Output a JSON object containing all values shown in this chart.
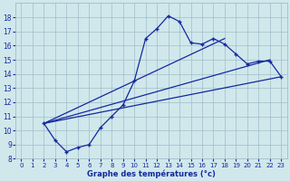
{
  "bg_color": "#d0e8ec",
  "line_color": "#1428a0",
  "grid_color": "#a0bcc8",
  "xlabel": "Graphe des températures (°c)",
  "ylim": [
    8,
    19
  ],
  "xlim": [
    -0.5,
    23.5
  ],
  "yticks": [
    8,
    9,
    10,
    11,
    12,
    13,
    14,
    15,
    16,
    17,
    18
  ],
  "xticks": [
    0,
    1,
    2,
    3,
    4,
    5,
    6,
    7,
    8,
    9,
    10,
    11,
    12,
    13,
    14,
    15,
    16,
    17,
    18,
    19,
    20,
    21,
    22,
    23
  ],
  "curve_x": [
    2,
    3,
    4,
    5,
    6,
    7,
    8,
    9,
    10,
    11,
    12,
    13,
    14,
    15,
    16,
    17,
    18,
    19,
    20,
    21,
    22,
    23
  ],
  "curve_y": [
    10.5,
    9.3,
    8.5,
    8.8,
    9.0,
    10.2,
    11.0,
    11.8,
    13.5,
    16.5,
    17.2,
    18.1,
    17.7,
    16.2,
    16.1,
    16.5,
    16.1,
    15.4,
    14.7,
    14.9,
    14.9,
    13.8
  ],
  "line1_x": [
    2,
    23
  ],
  "line1_y": [
    10.5,
    13.8
  ],
  "line2_x": [
    2,
    22
  ],
  "line2_y": [
    10.5,
    15.0
  ],
  "line3_x": [
    2,
    18
  ],
  "line3_y": [
    10.5,
    16.5
  ]
}
